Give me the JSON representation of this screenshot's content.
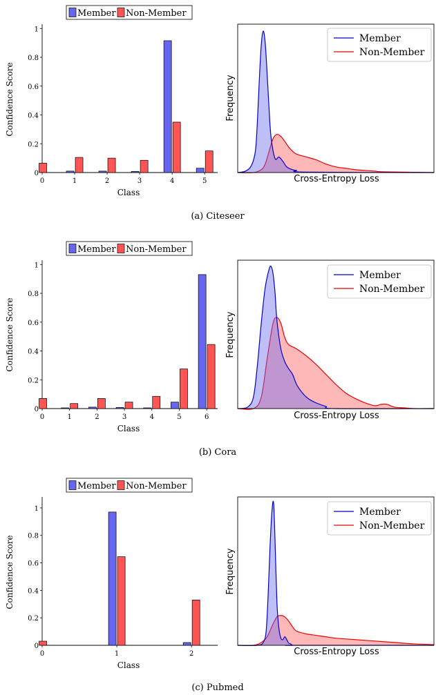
{
  "colors": {
    "member": "#0000cc",
    "member_fill": "#6666ee",
    "nonmember": "#ee0000",
    "nonmember_fill": "#ff5555"
  },
  "chart_data": [
    {
      "id": "citeseer-bar",
      "type": "bar",
      "ylabel": "Confidence Score",
      "xlabel": "Class",
      "categories": [
        "0",
        "1",
        "2",
        "3",
        "4",
        "5"
      ],
      "series": [
        {
          "name": "Member",
          "values": [
            0.0,
            0.01,
            0.01,
            0.008,
            0.915,
            0.03
          ]
        },
        {
          "name": "Non-Member",
          "values": [
            0.065,
            0.105,
            0.1,
            0.085,
            0.35,
            0.15
          ]
        }
      ],
      "xlim": [
        0,
        5.4
      ],
      "ylim": [
        0,
        1.03
      ],
      "yticks": [
        "0",
        "0.2",
        "0.4",
        "0.6",
        "0.8",
        "1"
      ],
      "legend": {
        "position": "top",
        "entries": [
          "Member",
          "Non-Member"
        ]
      }
    },
    {
      "id": "citeseer-kde",
      "type": "area",
      "xlabel": "Cross-Entropy Loss",
      "ylabel": "Frequency",
      "legend": {
        "position": "top-right",
        "entries": [
          "Member",
          "Non-Member"
        ]
      },
      "series": [
        {
          "name": "Member",
          "x": [
            0,
            4,
            7,
            9,
            10,
            11,
            12,
            13,
            14,
            15,
            16,
            17,
            19,
            21,
            23,
            25,
            28,
            30,
            35,
            100
          ],
          "y": [
            0,
            0.01,
            0.05,
            0.15,
            0.35,
            0.65,
            0.9,
            1.0,
            0.92,
            0.7,
            0.45,
            0.25,
            0.1,
            0.11,
            0.08,
            0.04,
            0.02,
            0.015,
            0.003,
            0
          ]
        },
        {
          "name": "Non-Member",
          "x": [
            0,
            8,
            12,
            14,
            16,
            18,
            20,
            22,
            24,
            26,
            28,
            30,
            35,
            40,
            45,
            50,
            55,
            60,
            65,
            70,
            75,
            100
          ],
          "y": [
            0,
            0,
            0.02,
            0.06,
            0.15,
            0.24,
            0.27,
            0.255,
            0.22,
            0.18,
            0.15,
            0.13,
            0.11,
            0.09,
            0.06,
            0.04,
            0.03,
            0.02,
            0.015,
            0.01,
            0.005,
            0
          ]
        }
      ]
    },
    {
      "id": "cora-bar",
      "type": "bar",
      "ylabel": "Confidence Score",
      "xlabel": "Class",
      "categories": [
        "0",
        "1",
        "2",
        "3",
        "4",
        "5",
        "6"
      ],
      "series": [
        {
          "name": "Member",
          "values": [
            0.0,
            0.005,
            0.01,
            0.008,
            0.005,
            0.045,
            0.93
          ]
        },
        {
          "name": "Non-Member",
          "values": [
            0.07,
            0.035,
            0.07,
            0.045,
            0.085,
            0.275,
            0.445
          ]
        }
      ],
      "xlim": [
        0,
        6.4
      ],
      "ylim": [
        0,
        1.03
      ],
      "yticks": [
        "0",
        "0.2",
        "0.4",
        "0.6",
        "0.8",
        "1"
      ],
      "legend": {
        "position": "top",
        "entries": [
          "Member",
          "Non-Member"
        ]
      }
    },
    {
      "id": "cora-kde",
      "type": "area",
      "xlabel": "Cross-Entropy Loss",
      "ylabel": "Frequency",
      "legend": {
        "position": "top-right",
        "entries": [
          "Member",
          "Non-Member"
        ]
      },
      "series": [
        {
          "name": "Member",
          "x": [
            0,
            5,
            8,
            10,
            12,
            14,
            16,
            17,
            18,
            19,
            20,
            22,
            24,
            26,
            28,
            30,
            33,
            36,
            40,
            45,
            50,
            100
          ],
          "y": [
            0,
            0.01,
            0.08,
            0.3,
            0.6,
            0.85,
            0.98,
            1.0,
            0.95,
            0.82,
            0.62,
            0.42,
            0.33,
            0.28,
            0.24,
            0.17,
            0.11,
            0.07,
            0.04,
            0.015,
            0,
            0
          ]
        },
        {
          "name": "Non-Member",
          "x": [
            0,
            8,
            12,
            15,
            18,
            20,
            22,
            24,
            26,
            30,
            35,
            40,
            45,
            50,
            55,
            60,
            65,
            70,
            73,
            76,
            80,
            85,
            90,
            100
          ],
          "y": [
            0,
            0,
            0.08,
            0.35,
            0.6,
            0.64,
            0.6,
            0.5,
            0.45,
            0.42,
            0.37,
            0.31,
            0.24,
            0.17,
            0.11,
            0.07,
            0.04,
            0.02,
            0.03,
            0.03,
            0.01,
            0.005,
            0,
            0
          ]
        }
      ]
    },
    {
      "id": "pubmed-bar",
      "type": "bar",
      "ylabel": "Confidence Score",
      "xlabel": "Class",
      "categories": [
        "0",
        "1",
        "2"
      ],
      "series": [
        {
          "name": "Member",
          "values": [
            0.0,
            0.97,
            0.02
          ]
        },
        {
          "name": "Non-Member",
          "values": [
            0.03,
            0.645,
            0.33
          ]
        }
      ],
      "xlim": [
        0,
        2.35
      ],
      "ylim": [
        0,
        1.08
      ],
      "yticks": [
        "0",
        "0.2",
        "0.4",
        "0.6",
        "0.8",
        "1"
      ],
      "legend": {
        "position": "top",
        "entries": [
          "Member",
          "Non-Member"
        ]
      }
    },
    {
      "id": "pubmed-kde",
      "type": "area",
      "xlabel": "Cross-Entropy Loss",
      "ylabel": "Frequency",
      "legend": {
        "position": "top-right",
        "entries": [
          "Member",
          "Non-Member"
        ]
      },
      "series": [
        {
          "name": "Member",
          "x": [
            0,
            10,
            13,
            14.5,
            15.5,
            16.5,
            17.5,
            18.3,
            19,
            20,
            21,
            22,
            23,
            24,
            25,
            26,
            27,
            28,
            30,
            100
          ],
          "y": [
            0,
            0,
            0.02,
            0.1,
            0.35,
            0.7,
            0.95,
            1.0,
            0.75,
            0.3,
            0.12,
            0.05,
            0.04,
            0.06,
            0.04,
            0.015,
            0.01,
            0,
            0,
            0
          ]
        },
        {
          "name": "Non-Member",
          "x": [
            0,
            8,
            12,
            15,
            18,
            20,
            22,
            24,
            26,
            28,
            30,
            35,
            40,
            45,
            50,
            60,
            70,
            80,
            90,
            100
          ],
          "y": [
            0,
            0,
            0.02,
            0.06,
            0.15,
            0.2,
            0.21,
            0.2,
            0.17,
            0.13,
            0.1,
            0.08,
            0.07,
            0.06,
            0.05,
            0.04,
            0.03,
            0.02,
            0.01,
            0.005
          ]
        }
      ]
    }
  ],
  "captions": [
    "(a)  Citeseer",
    "(b)  Cora",
    "(c)  Pubmed"
  ]
}
